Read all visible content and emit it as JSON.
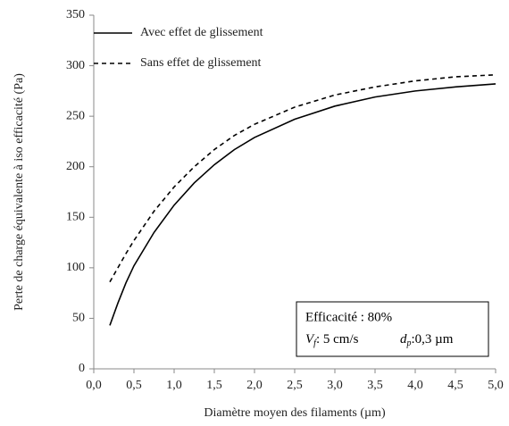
{
  "chart_data": {
    "type": "line",
    "xlabel": "Diamètre moyen des filaments (µm)",
    "ylabel": "Perte de charge équivalente à iso efficacité (Pa)",
    "x": [
      0.2,
      0.3,
      0.4,
      0.5,
      0.75,
      1.0,
      1.25,
      1.5,
      1.75,
      2.0,
      2.5,
      3.0,
      3.5,
      4.0,
      4.5,
      5.0
    ],
    "series": [
      {
        "name": "Avec effet de glissement",
        "color": "#000000",
        "dash": "solid",
        "values": [
          43,
          65,
          85,
          102,
          135,
          162,
          184,
          202,
          217,
          229,
          247,
          260,
          269,
          275,
          279,
          282
        ]
      },
      {
        "name": "Sans effet de glissement",
        "color": "#000000",
        "dash": "dashed",
        "values": [
          86,
          100,
          114,
          127,
          156,
          180,
          200,
          217,
          231,
          242,
          259,
          271,
          279,
          285,
          289,
          291
        ]
      }
    ],
    "xlim": [
      0,
      5
    ],
    "xticks": [
      {
        "value": 0,
        "label": "0,0"
      },
      {
        "value": 0.5,
        "label": "0,5"
      },
      {
        "value": 1,
        "label": "1,0"
      },
      {
        "value": 1.5,
        "label": "1,5"
      },
      {
        "value": 2,
        "label": "2,0"
      },
      {
        "value": 2.5,
        "label": "2,5"
      },
      {
        "value": 3,
        "label": "3,0"
      },
      {
        "value": 3.5,
        "label": "3,5"
      },
      {
        "value": 4,
        "label": "4,0"
      },
      {
        "value": 4.5,
        "label": "4,5"
      },
      {
        "value": 5,
        "label": "5,0"
      }
    ],
    "ylim": [
      0,
      350
    ],
    "yticks": [
      0,
      50,
      100,
      150,
      200,
      250,
      300,
      350
    ],
    "grid": false,
    "legend": "top-left",
    "annotation": {
      "line1": "Efficacité : 80%",
      "v": "V",
      "v_sub": "f",
      "v_text": ": 5 cm/s",
      "d": "d",
      "d_sub": "p",
      "d_text": ":0,3 µm"
    }
  }
}
